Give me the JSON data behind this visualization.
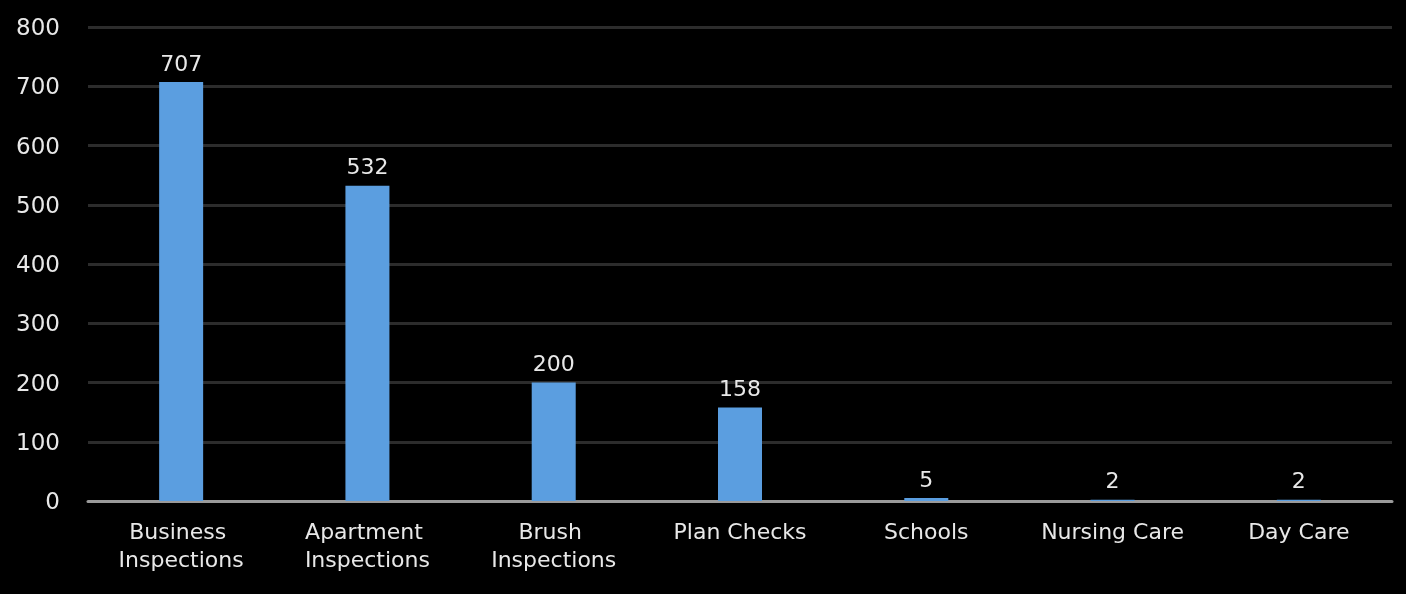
{
  "chart_data": {
    "type": "bar",
    "categories": [
      "Business Inspections",
      "Apartment Inspections",
      "Brush Inspections",
      "Plan Checks",
      "Schools",
      "Nursing Care",
      "Day Care"
    ],
    "values": [
      707,
      532,
      200,
      158,
      5,
      2,
      2
    ],
    "color": "#5b9ee0",
    "ylim": [
      0,
      800
    ],
    "yticks": [
      0,
      100,
      200,
      300,
      400,
      500,
      600,
      700,
      800
    ],
    "grid": "y",
    "data_labels": true
  }
}
